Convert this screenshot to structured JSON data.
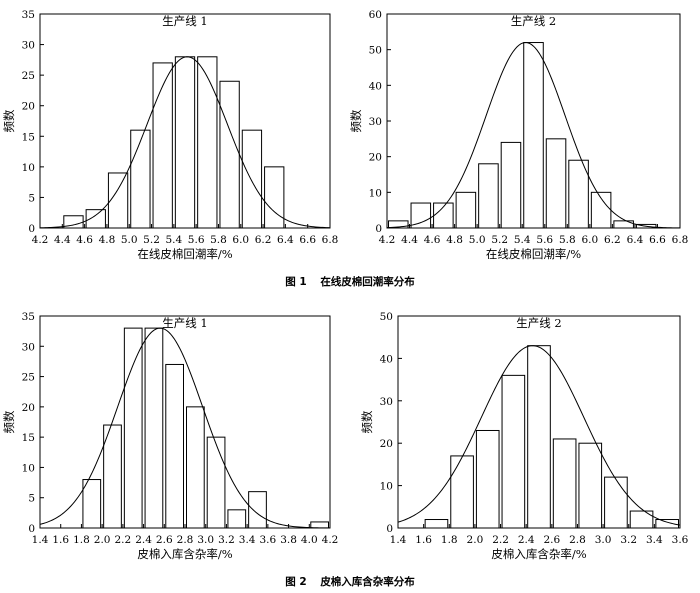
{
  "figures": [
    {
      "number": "图 1",
      "caption": "在线皮棉回潮率分布"
    },
    {
      "number": "图 2",
      "caption": "皮棉入库含杂率分布"
    }
  ],
  "chart_data": [
    {
      "type": "bar",
      "title": "生产线 1",
      "xlabel": "在线皮棉回潮率/%",
      "ylabel": "频数",
      "xlim": [
        4.2,
        6.8
      ],
      "ylim": [
        0,
        35
      ],
      "xticks": [
        "4.2",
        "4.4",
        "4.6",
        "4.8",
        "5.0",
        "5.2",
        "5.4",
        "5.6",
        "5.8",
        "6.0",
        "6.2",
        "6.4",
        "6.6",
        "6.8"
      ],
      "yticks": [
        "0",
        "5",
        "10",
        "15",
        "20",
        "25",
        "30",
        "35"
      ],
      "bins": [
        [
          4.4,
          4.6
        ],
        [
          4.6,
          4.8
        ],
        [
          4.8,
          5.0
        ],
        [
          5.0,
          5.2
        ],
        [
          5.2,
          5.4
        ],
        [
          5.4,
          5.6
        ],
        [
          5.6,
          5.8
        ],
        [
          5.8,
          6.0
        ],
        [
          6.0,
          6.2
        ],
        [
          6.2,
          6.4
        ]
      ],
      "values": [
        2,
        3,
        9,
        16,
        27,
        28,
        28,
        24,
        16,
        10
      ],
      "curve": {
        "type": "normal",
        "mean": 5.52,
        "sd": 0.36,
        "peak": 28
      }
    },
    {
      "type": "bar",
      "title": "生产线 2",
      "xlabel": "在线皮棉回潮率/%",
      "ylabel": "频数",
      "xlim": [
        4.2,
        6.8
      ],
      "ylim": [
        0,
        60
      ],
      "xticks": [
        "4.2",
        "4.4",
        "4.6",
        "4.8",
        "5.0",
        "5.2",
        "5.4",
        "5.6",
        "5.8",
        "6.0",
        "6.2",
        "6.4",
        "6.6",
        "6.8"
      ],
      "yticks": [
        "0",
        "10",
        "20",
        "30",
        "40",
        "50",
        "60"
      ],
      "bins": [
        [
          4.2,
          4.4
        ],
        [
          4.4,
          4.6
        ],
        [
          4.6,
          4.8
        ],
        [
          4.8,
          5.0
        ],
        [
          5.0,
          5.2
        ],
        [
          5.2,
          5.4
        ],
        [
          5.4,
          5.6
        ],
        [
          5.6,
          5.8
        ],
        [
          5.8,
          6.0
        ],
        [
          6.0,
          6.2
        ],
        [
          6.2,
          6.4
        ],
        [
          6.4,
          6.6
        ]
      ],
      "values": [
        2,
        7,
        7,
        10,
        18,
        24,
        52,
        25,
        19,
        10,
        2,
        1
      ],
      "curve": {
        "type": "normal",
        "mean": 5.43,
        "sd": 0.35,
        "peak": 52
      }
    },
    {
      "type": "bar",
      "title": "生产线 1",
      "xlabel": "皮棉入库含杂率/%",
      "ylabel": "频数",
      "xlim": [
        1.4,
        4.2
      ],
      "ylim": [
        0,
        35
      ],
      "xticks": [
        "1.4",
        "1.6",
        "1.8",
        "2.0",
        "2.2",
        "2.4",
        "2.6",
        "2.8",
        "3.0",
        "3.2",
        "3.4",
        "3.6",
        "3.8",
        "4.0",
        "4.2"
      ],
      "yticks": [
        "0",
        "5",
        "10",
        "15",
        "20",
        "25",
        "30",
        "35"
      ],
      "bins": [
        [
          1.8,
          2.0
        ],
        [
          2.0,
          2.2
        ],
        [
          2.2,
          2.4
        ],
        [
          2.4,
          2.6
        ],
        [
          2.6,
          2.8
        ],
        [
          2.8,
          3.0
        ],
        [
          3.0,
          3.2
        ],
        [
          3.2,
          3.4
        ],
        [
          3.4,
          3.6
        ],
        [
          4.0,
          4.2
        ]
      ],
      "values": [
        8,
        17,
        33,
        33,
        27,
        20,
        15,
        3,
        6,
        1
      ],
      "curve": {
        "type": "normal",
        "mean": 2.56,
        "sd": 0.41,
        "peak": 33
      }
    },
    {
      "type": "bar",
      "title": "生产线 2",
      "xlabel": "皮棉入库含杂率/%",
      "ylabel": "频数",
      "xlim": [
        1.4,
        3.6
      ],
      "ylim": [
        0,
        50
      ],
      "xticks": [
        "1.4",
        "1.6",
        "1.8",
        "2.0",
        "2.2",
        "2.4",
        "2.6",
        "2.8",
        "3.0",
        "3.2",
        "3.4",
        "3.6"
      ],
      "yticks": [
        "0",
        "10",
        "20",
        "30",
        "40",
        "50"
      ],
      "bins": [
        [
          1.6,
          1.8
        ],
        [
          1.8,
          2.0
        ],
        [
          2.0,
          2.2
        ],
        [
          2.2,
          2.4
        ],
        [
          2.4,
          2.6
        ],
        [
          2.6,
          2.8
        ],
        [
          2.8,
          3.0
        ],
        [
          3.0,
          3.2
        ],
        [
          3.2,
          3.4
        ],
        [
          3.4,
          3.6
        ]
      ],
      "values": [
        2,
        17,
        23,
        36,
        43,
        21,
        20,
        12,
        4,
        2
      ],
      "curve": {
        "type": "normal",
        "mean": 2.45,
        "sd": 0.4,
        "peak": 43
      }
    }
  ]
}
